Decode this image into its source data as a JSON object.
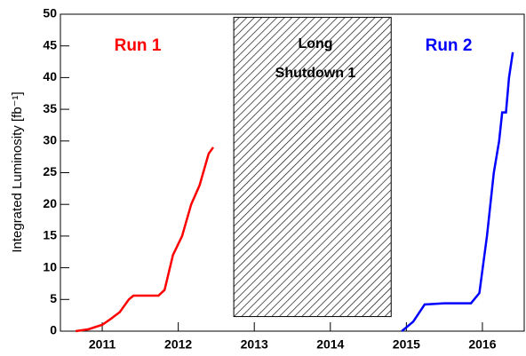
{
  "chart_data": {
    "type": "line",
    "y_label": "Integrated Luminosity [fb⁻¹]",
    "xlim": [
      2010.45,
      2016.55
    ],
    "xticks": [
      2011,
      2012,
      2013,
      2014,
      2015,
      2016
    ],
    "ylim": [
      0,
      50
    ],
    "yticks": [
      0,
      5,
      10,
      15,
      20,
      25,
      30,
      35,
      40,
      45,
      50
    ],
    "shaded_region": {
      "x": [
        2012.73,
        2014.8
      ],
      "y": [
        2.3,
        49.5
      ]
    },
    "series": [
      {
        "name": "Run 1",
        "color": "#ff0000",
        "x": [
          2010.65,
          2010.82,
          2011.0,
          2011.12,
          2011.23,
          2011.35,
          2011.41,
          2011.74,
          2011.82,
          2011.93,
          2012.05,
          2012.17,
          2012.28,
          2012.4,
          2012.46
        ],
        "values": [
          0,
          0.3,
          1,
          2,
          3,
          5,
          5.6,
          5.6,
          6.5,
          12,
          15,
          20,
          23,
          28,
          29
        ]
      },
      {
        "name": "Run 2",
        "color": "#0000ff",
        "x": [
          2014.94,
          2015.09,
          2015.24,
          2015.5,
          2015.85,
          2015.96,
          2016.06,
          2016.15,
          2016.22,
          2016.26,
          2016.31,
          2016.35,
          2016.4
        ],
        "values": [
          0,
          1.5,
          4.2,
          4.4,
          4.4,
          6,
          15,
          25,
          30,
          34.5,
          34.5,
          40,
          44
        ]
      }
    ],
    "annotations": [
      "Long",
      "Shutdown 1"
    ]
  }
}
